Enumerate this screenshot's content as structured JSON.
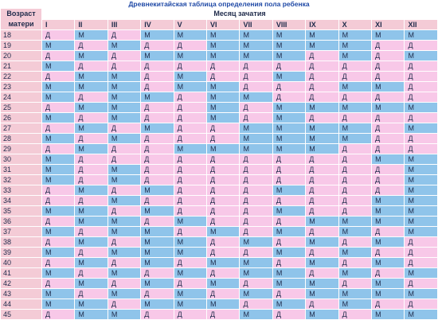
{
  "title": "Древнекитайская таблица определения пола ребенка",
  "age_header": "Возраст матери",
  "month_header": "Месяц зачатия",
  "months": [
    "I",
    "II",
    "III",
    "IV",
    "V",
    "VI",
    "VII",
    "VIII",
    "IX",
    "X",
    "XI",
    "XII"
  ],
  "colors": {
    "boy": "#8fc4ea",
    "girl": "#f8c8e8",
    "header": "#f4cbd6",
    "title": "#1f49a6"
  },
  "rows": [
    {
      "age": "18",
      "cells": [
        "Д",
        "М",
        "Д",
        "М",
        "М",
        "М",
        "М",
        "М",
        "М",
        "М",
        "М",
        "М"
      ]
    },
    {
      "age": "19",
      "cells": [
        "М",
        "Д",
        "М",
        "Д",
        "Д",
        "М",
        "М",
        "М",
        "М",
        "М",
        "Д",
        "Д"
      ]
    },
    {
      "age": "20",
      "cells": [
        "Д",
        "М",
        "Д",
        "М",
        "М",
        "М",
        "М",
        "М",
        "Д",
        "М",
        "Д",
        "М"
      ]
    },
    {
      "age": "21",
      "cells": [
        "М",
        "Д",
        "Д",
        "Д",
        "Д",
        "Д",
        "Д",
        "Д",
        "Д",
        "Д",
        "Д",
        "Д"
      ]
    },
    {
      "age": "22",
      "cells": [
        "Д",
        "М",
        "М",
        "Д",
        "М",
        "Д",
        "Д",
        "М",
        "Д",
        "Д",
        "Д",
        "Д"
      ]
    },
    {
      "age": "23",
      "cells": [
        "М",
        "М",
        "М",
        "Д",
        "М",
        "М",
        "Д",
        "Д",
        "Д",
        "М",
        "М",
        "Д"
      ]
    },
    {
      "age": "24",
      "cells": [
        "М",
        "Д",
        "М",
        "М",
        "Д",
        "М",
        "М",
        "Д",
        "Д",
        "Д",
        "Д",
        "Д"
      ]
    },
    {
      "age": "25",
      "cells": [
        "Д",
        "М",
        "М",
        "Д",
        "Д",
        "М",
        "Д",
        "М",
        "М",
        "М",
        "М",
        "М"
      ]
    },
    {
      "age": "26",
      "cells": [
        "М",
        "Д",
        "М",
        "Д",
        "Д",
        "М",
        "Д",
        "М",
        "Д",
        "Д",
        "Д",
        "Д"
      ]
    },
    {
      "age": "27",
      "cells": [
        "Д",
        "М",
        "Д",
        "М",
        "Д",
        "Д",
        "М",
        "М",
        "М",
        "М",
        "Д",
        "М"
      ]
    },
    {
      "age": "28",
      "cells": [
        "М",
        "Д",
        "М",
        "Д",
        "Д",
        "Д",
        "М",
        "М",
        "М",
        "М",
        "Д",
        "Д"
      ]
    },
    {
      "age": "29",
      "cells": [
        "Д",
        "М",
        "Д",
        "Д",
        "М",
        "М",
        "М",
        "М",
        "М",
        "Д",
        "Д",
        "Д"
      ]
    },
    {
      "age": "30",
      "cells": [
        "М",
        "Д",
        "Д",
        "Д",
        "Д",
        "Д",
        "Д",
        "Д",
        "Д",
        "Д",
        "М",
        "М"
      ]
    },
    {
      "age": "31",
      "cells": [
        "М",
        "Д",
        "М",
        "Д",
        "Д",
        "Д",
        "Д",
        "Д",
        "Д",
        "Д",
        "Д",
        "М"
      ]
    },
    {
      "age": "32",
      "cells": [
        "М",
        "Д",
        "М",
        "Д",
        "Д",
        "Д",
        "Д",
        "Д",
        "Д",
        "Д",
        "Д",
        "М"
      ]
    },
    {
      "age": "33",
      "cells": [
        "Д",
        "М",
        "Д",
        "М",
        "Д",
        "Д",
        "Д",
        "М",
        "Д",
        "Д",
        "Д",
        "М"
      ]
    },
    {
      "age": "34",
      "cells": [
        "Д",
        "Д",
        "М",
        "Д",
        "Д",
        "Д",
        "Д",
        "Д",
        "Д",
        "Д",
        "М",
        "М"
      ]
    },
    {
      "age": "35",
      "cells": [
        "М",
        "М",
        "Д",
        "М",
        "Д",
        "Д",
        "Д",
        "М",
        "Д",
        "Д",
        "М",
        "М"
      ]
    },
    {
      "age": "36",
      "cells": [
        "Д",
        "М",
        "М",
        "Д",
        "М",
        "Д",
        "Д",
        "Д",
        "М",
        "М",
        "М",
        "М"
      ]
    },
    {
      "age": "37",
      "cells": [
        "М",
        "Д",
        "М",
        "М",
        "Д",
        "М",
        "Д",
        "М",
        "Д",
        "М",
        "Д",
        "М"
      ]
    },
    {
      "age": "38",
      "cells": [
        "Д",
        "М",
        "Д",
        "М",
        "М",
        "Д",
        "М",
        "Д",
        "М",
        "Д",
        "М",
        "Д"
      ]
    },
    {
      "age": "39",
      "cells": [
        "М",
        "Д",
        "М",
        "М",
        "М",
        "Д",
        "Д",
        "М",
        "Д",
        "М",
        "Д",
        "Д"
      ]
    },
    {
      "age": "40",
      "cells": [
        "Д",
        "М",
        "Д",
        "М",
        "Д",
        "М",
        "М",
        "Д",
        "М",
        "Д",
        "М",
        "Д"
      ]
    },
    {
      "age": "41",
      "cells": [
        "М",
        "Д",
        "М",
        "Д",
        "М",
        "Д",
        "М",
        "М",
        "Д",
        "М",
        "Д",
        "М"
      ]
    },
    {
      "age": "42",
      "cells": [
        "Д",
        "М",
        "Д",
        "М",
        "Д",
        "М",
        "Д",
        "М",
        "М",
        "Д",
        "М",
        "Д"
      ]
    },
    {
      "age": "43",
      "cells": [
        "М",
        "Д",
        "М",
        "Д",
        "М",
        "Д",
        "М",
        "Д",
        "М",
        "М",
        "М",
        "М"
      ]
    },
    {
      "age": "44",
      "cells": [
        "М",
        "М",
        "Д",
        "М",
        "М",
        "М",
        "Д",
        "М",
        "Д",
        "М",
        "Д",
        "Д"
      ]
    },
    {
      "age": "45",
      "cells": [
        "Д",
        "М",
        "М",
        "Д",
        "Д",
        "Д",
        "М",
        "Д",
        "М",
        "Д",
        "М",
        "М"
      ]
    }
  ]
}
